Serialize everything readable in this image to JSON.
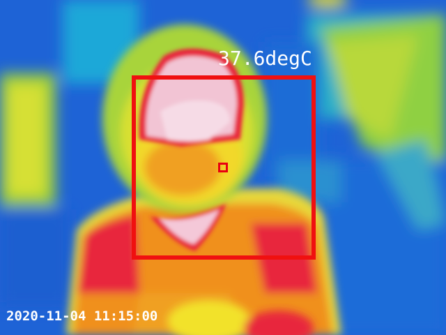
{
  "overlay": {
    "temperature_label": "37.6degC",
    "timestamp": "2020-11-04 11:15:00"
  },
  "palette": {
    "cold": "#1e63d6",
    "cool": "#1aa8d8",
    "mid": "#7fd040",
    "warm": "#f2e22a",
    "hot": "#f0901a",
    "hotter": "#e8283c",
    "hottest": "#f6dbe6",
    "box_color": "#f01010",
    "text_color": "#ffffff"
  }
}
